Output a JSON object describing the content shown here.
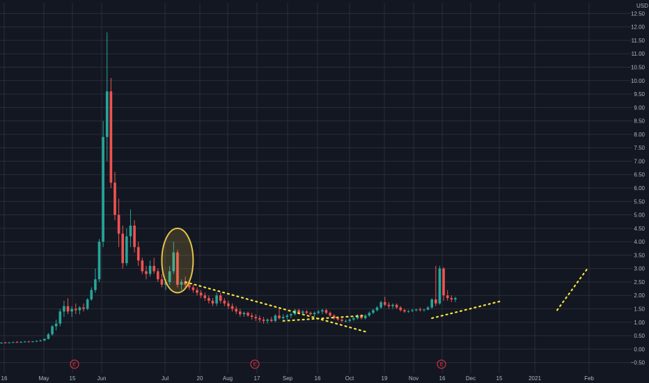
{
  "chart_data": {
    "type": "candlestick",
    "currency": "USD",
    "y_ticks": [
      12.5,
      12.0,
      11.5,
      11.0,
      10.5,
      10.0,
      9.5,
      9.0,
      8.5,
      8.0,
      7.5,
      7.0,
      6.5,
      6.0,
      5.5,
      5.0,
      4.5,
      4.0,
      3.5,
      3.0,
      2.5,
      2.0,
      1.5,
      1.0,
      0.5,
      0.0,
      -0.5
    ],
    "y_tick_labels": [
      "12.50",
      "12.00",
      "11.50",
      "11.00",
      "10.50",
      "10.00",
      "9.50",
      "9.00",
      "8.50",
      "8.00",
      "7.50",
      "7.00",
      "6.50",
      "6.00",
      "5.50",
      "5.00",
      "4.50",
      "4.00",
      "3.50",
      "3.00",
      "2.50",
      "2.00",
      "1.50",
      "1.00",
      "0.50",
      "0.00",
      "−0.50"
    ],
    "ylim": [
      -0.9,
      12.9
    ],
    "x_tick_labels": [
      "16",
      "May",
      "15",
      "Jun",
      "Jul",
      "20",
      "Aug",
      "17",
      "Sep",
      "16",
      "Oct",
      "19",
      "Nov",
      "16",
      "Dec",
      "15",
      "2021",
      "Feb"
    ],
    "earnings_badges": [
      "E",
      "E",
      "E"
    ],
    "grid": true,
    "candles": [
      {
        "o": 0.22,
        "h": 0.26,
        "l": 0.2,
        "c": 0.24
      },
      {
        "o": 0.24,
        "h": 0.27,
        "l": 0.22,
        "c": 0.23
      },
      {
        "o": 0.23,
        "h": 0.26,
        "l": 0.21,
        "c": 0.25
      },
      {
        "o": 0.25,
        "h": 0.28,
        "l": 0.23,
        "c": 0.26
      },
      {
        "o": 0.26,
        "h": 0.3,
        "l": 0.24,
        "c": 0.25
      },
      {
        "o": 0.25,
        "h": 0.29,
        "l": 0.23,
        "c": 0.27
      },
      {
        "o": 0.27,
        "h": 0.3,
        "l": 0.25,
        "c": 0.28
      },
      {
        "o": 0.28,
        "h": 0.31,
        "l": 0.26,
        "c": 0.27
      },
      {
        "o": 0.27,
        "h": 0.3,
        "l": 0.25,
        "c": 0.29
      },
      {
        "o": 0.29,
        "h": 0.33,
        "l": 0.27,
        "c": 0.3
      },
      {
        "o": 0.3,
        "h": 0.35,
        "l": 0.28,
        "c": 0.32
      },
      {
        "o": 0.32,
        "h": 0.4,
        "l": 0.3,
        "c": 0.38
      },
      {
        "o": 0.38,
        "h": 0.6,
        "l": 0.36,
        "c": 0.55
      },
      {
        "o": 0.55,
        "h": 0.9,
        "l": 0.5,
        "c": 0.85
      },
      {
        "o": 0.85,
        "h": 1.1,
        "l": 0.7,
        "c": 0.95
      },
      {
        "o": 0.95,
        "h": 1.5,
        "l": 0.85,
        "c": 1.4
      },
      {
        "o": 1.4,
        "h": 1.8,
        "l": 1.2,
        "c": 1.6
      },
      {
        "o": 1.6,
        "h": 1.9,
        "l": 1.3,
        "c": 1.4
      },
      {
        "o": 1.4,
        "h": 1.6,
        "l": 1.2,
        "c": 1.5
      },
      {
        "o": 1.5,
        "h": 1.7,
        "l": 1.3,
        "c": 1.45
      },
      {
        "o": 1.45,
        "h": 1.6,
        "l": 1.3,
        "c": 1.55
      },
      {
        "o": 1.55,
        "h": 1.7,
        "l": 1.4,
        "c": 1.5
      },
      {
        "o": 1.5,
        "h": 1.9,
        "l": 1.45,
        "c": 1.85
      },
      {
        "o": 1.85,
        "h": 2.3,
        "l": 1.8,
        "c": 2.2
      },
      {
        "o": 2.2,
        "h": 3.0,
        "l": 2.1,
        "c": 2.6
      },
      {
        "o": 2.6,
        "h": 4.1,
        "l": 2.5,
        "c": 4.0
      },
      {
        "o": 4.0,
        "h": 8.5,
        "l": 3.8,
        "c": 7.9
      },
      {
        "o": 7.9,
        "h": 11.8,
        "l": 7.0,
        "c": 9.6
      },
      {
        "o": 9.6,
        "h": 10.1,
        "l": 6.0,
        "c": 6.2
      },
      {
        "o": 6.2,
        "h": 6.6,
        "l": 4.8,
        "c": 5.0
      },
      {
        "o": 5.0,
        "h": 5.6,
        "l": 3.8,
        "c": 4.3
      },
      {
        "o": 4.3,
        "h": 4.6,
        "l": 3.0,
        "c": 3.2
      },
      {
        "o": 3.2,
        "h": 4.5,
        "l": 3.1,
        "c": 4.2
      },
      {
        "o": 4.2,
        "h": 5.2,
        "l": 3.8,
        "c": 4.6
      },
      {
        "o": 4.6,
        "h": 4.8,
        "l": 3.6,
        "c": 3.8
      },
      {
        "o": 3.8,
        "h": 4.0,
        "l": 3.1,
        "c": 3.3
      },
      {
        "o": 3.3,
        "h": 3.4,
        "l": 2.8,
        "c": 2.9
      },
      {
        "o": 2.9,
        "h": 3.1,
        "l": 2.6,
        "c": 2.8
      },
      {
        "o": 2.8,
        "h": 3.3,
        "l": 2.7,
        "c": 3.1
      },
      {
        "o": 3.1,
        "h": 3.4,
        "l": 2.8,
        "c": 2.9
      },
      {
        "o": 2.9,
        "h": 3.0,
        "l": 2.5,
        "c": 2.6
      },
      {
        "o": 2.6,
        "h": 2.8,
        "l": 2.3,
        "c": 2.4
      },
      {
        "o": 2.4,
        "h": 2.6,
        "l": 2.2,
        "c": 2.5
      },
      {
        "o": 2.5,
        "h": 3.1,
        "l": 2.4,
        "c": 2.9
      },
      {
        "o": 2.9,
        "h": 4.0,
        "l": 2.8,
        "c": 3.6
      },
      {
        "o": 3.6,
        "h": 3.7,
        "l": 2.3,
        "c": 2.4
      },
      {
        "o": 2.4,
        "h": 2.6,
        "l": 2.2,
        "c": 2.5
      },
      {
        "o": 2.5,
        "h": 2.7,
        "l": 2.3,
        "c": 2.4
      },
      {
        "o": 2.4,
        "h": 2.5,
        "l": 2.2,
        "c": 2.3
      },
      {
        "o": 2.3,
        "h": 2.4,
        "l": 2.1,
        "c": 2.2
      },
      {
        "o": 2.2,
        "h": 2.3,
        "l": 2.0,
        "c": 2.1
      },
      {
        "o": 2.1,
        "h": 2.2,
        "l": 1.9,
        "c": 2.0
      },
      {
        "o": 2.0,
        "h": 2.1,
        "l": 1.8,
        "c": 1.9
      },
      {
        "o": 1.9,
        "h": 2.0,
        "l": 1.7,
        "c": 1.8
      },
      {
        "o": 1.8,
        "h": 1.9,
        "l": 1.6,
        "c": 1.7
      },
      {
        "o": 1.7,
        "h": 2.1,
        "l": 1.6,
        "c": 2.0
      },
      {
        "o": 2.0,
        "h": 2.1,
        "l": 1.7,
        "c": 1.8
      },
      {
        "o": 1.8,
        "h": 1.9,
        "l": 1.6,
        "c": 1.7
      },
      {
        "o": 1.7,
        "h": 1.8,
        "l": 1.5,
        "c": 1.6
      },
      {
        "o": 1.6,
        "h": 1.7,
        "l": 1.4,
        "c": 1.5
      },
      {
        "o": 1.5,
        "h": 1.6,
        "l": 1.3,
        "c": 1.4
      },
      {
        "o": 1.4,
        "h": 1.5,
        "l": 1.2,
        "c": 1.3
      },
      {
        "o": 1.3,
        "h": 1.4,
        "l": 1.2,
        "c": 1.35
      },
      {
        "o": 1.35,
        "h": 1.4,
        "l": 1.2,
        "c": 1.25
      },
      {
        "o": 1.25,
        "h": 1.35,
        "l": 1.1,
        "c": 1.2
      },
      {
        "o": 1.2,
        "h": 1.3,
        "l": 1.05,
        "c": 1.15
      },
      {
        "o": 1.15,
        "h": 1.25,
        "l": 1.0,
        "c": 1.1
      },
      {
        "o": 1.1,
        "h": 1.2,
        "l": 0.95,
        "c": 1.05
      },
      {
        "o": 1.05,
        "h": 1.15,
        "l": 0.95,
        "c": 1.1
      },
      {
        "o": 1.1,
        "h": 1.2,
        "l": 1.0,
        "c": 1.05
      },
      {
        "o": 1.05,
        "h": 1.3,
        "l": 1.0,
        "c": 1.25
      },
      {
        "o": 1.25,
        "h": 1.5,
        "l": 1.1,
        "c": 1.15
      },
      {
        "o": 1.15,
        "h": 1.3,
        "l": 1.1,
        "c": 1.2
      },
      {
        "o": 1.2,
        "h": 1.3,
        "l": 1.1,
        "c": 1.25
      },
      {
        "o": 1.25,
        "h": 1.35,
        "l": 1.15,
        "c": 1.3
      },
      {
        "o": 1.3,
        "h": 1.5,
        "l": 1.25,
        "c": 1.45
      },
      {
        "o": 1.45,
        "h": 1.5,
        "l": 1.3,
        "c": 1.35
      },
      {
        "o": 1.35,
        "h": 1.45,
        "l": 1.3,
        "c": 1.4
      },
      {
        "o": 1.4,
        "h": 1.45,
        "l": 1.3,
        "c": 1.35
      },
      {
        "o": 1.35,
        "h": 1.4,
        "l": 1.25,
        "c": 1.3
      },
      {
        "o": 1.3,
        "h": 1.4,
        "l": 1.2,
        "c": 1.35
      },
      {
        "o": 1.35,
        "h": 1.45,
        "l": 1.3,
        "c": 1.4
      },
      {
        "o": 1.4,
        "h": 1.5,
        "l": 1.3,
        "c": 1.45
      },
      {
        "o": 1.45,
        "h": 1.5,
        "l": 1.3,
        "c": 1.35
      },
      {
        "o": 1.35,
        "h": 1.4,
        "l": 1.2,
        "c": 1.25
      },
      {
        "o": 1.25,
        "h": 1.3,
        "l": 1.1,
        "c": 1.15
      },
      {
        "o": 1.15,
        "h": 1.2,
        "l": 1.05,
        "c": 1.1
      },
      {
        "o": 1.1,
        "h": 1.15,
        "l": 1.0,
        "c": 1.05
      },
      {
        "o": 1.05,
        "h": 1.1,
        "l": 1.0,
        "c": 1.05
      },
      {
        "o": 1.05,
        "h": 1.15,
        "l": 1.0,
        "c": 1.1
      },
      {
        "o": 1.1,
        "h": 1.2,
        "l": 1.05,
        "c": 1.15
      },
      {
        "o": 1.15,
        "h": 1.3,
        "l": 1.1,
        "c": 1.25
      },
      {
        "o": 1.25,
        "h": 1.3,
        "l": 1.1,
        "c": 1.15
      },
      {
        "o": 1.15,
        "h": 1.3,
        "l": 1.1,
        "c": 1.25
      },
      {
        "o": 1.25,
        "h": 1.4,
        "l": 1.2,
        "c": 1.35
      },
      {
        "o": 1.35,
        "h": 1.5,
        "l": 1.3,
        "c": 1.45
      },
      {
        "o": 1.45,
        "h": 1.6,
        "l": 1.4,
        "c": 1.55
      },
      {
        "o": 1.55,
        "h": 1.8,
        "l": 1.5,
        "c": 1.75
      },
      {
        "o": 1.75,
        "h": 1.95,
        "l": 1.6,
        "c": 1.65
      },
      {
        "o": 1.65,
        "h": 1.75,
        "l": 1.5,
        "c": 1.6
      },
      {
        "o": 1.6,
        "h": 1.7,
        "l": 1.5,
        "c": 1.65
      },
      {
        "o": 1.65,
        "h": 1.7,
        "l": 1.5,
        "c": 1.55
      },
      {
        "o": 1.55,
        "h": 1.6,
        "l": 1.4,
        "c": 1.45
      },
      {
        "o": 1.45,
        "h": 1.5,
        "l": 1.35,
        "c": 1.4
      },
      {
        "o": 1.4,
        "h": 1.45,
        "l": 1.35,
        "c": 1.42
      },
      {
        "o": 1.42,
        "h": 1.5,
        "l": 1.38,
        "c": 1.45
      },
      {
        "o": 1.45,
        "h": 1.5,
        "l": 1.4,
        "c": 1.48
      },
      {
        "o": 1.48,
        "h": 1.55,
        "l": 1.4,
        "c": 1.45
      },
      {
        "o": 1.45,
        "h": 1.5,
        "l": 1.4,
        "c": 1.47
      },
      {
        "o": 1.47,
        "h": 1.6,
        "l": 1.45,
        "c": 1.55
      },
      {
        "o": 1.55,
        "h": 1.9,
        "l": 1.5,
        "c": 1.85
      },
      {
        "o": 1.85,
        "h": 3.1,
        "l": 1.6,
        "c": 1.7
      },
      {
        "o": 1.7,
        "h": 3.1,
        "l": 1.65,
        "c": 3.0
      },
      {
        "o": 3.0,
        "h": 3.05,
        "l": 1.8,
        "c": 2.0
      },
      {
        "o": 2.0,
        "h": 2.2,
        "l": 1.8,
        "c": 1.9
      },
      {
        "o": 1.9,
        "h": 2.0,
        "l": 1.75,
        "c": 1.85
      },
      {
        "o": 1.85,
        "h": 1.95,
        "l": 1.75,
        "c": 1.9
      }
    ],
    "annotations": {
      "ellipse": {
        "x_index": [
          41,
          49
        ],
        "y": [
          2.1,
          4.5
        ],
        "color": "#e6c34a"
      },
      "trendlines": [
        {
          "from_index": 47,
          "from_y": 2.5,
          "to_index": 93,
          "to_y": 0.65,
          "color": "#f5e63c"
        },
        {
          "from_index": 72,
          "from_y": 1.05,
          "to_index": 93,
          "to_y": 1.25,
          "color": "#f5e63c"
        },
        {
          "from_index": 110,
          "from_y": 1.15,
          "to_index": 128,
          "to_y": 1.8,
          "color": "#f5e63c"
        },
        {
          "from_index": 142,
          "from_y": 1.45,
          "to_index": 150,
          "to_y": 3.05,
          "color": "#f5e63c"
        }
      ]
    },
    "colors": {
      "up": "#26a69a",
      "down": "#ef5350",
      "grid": "#2a2e39",
      "background": "#131722",
      "text": "#b2b5be",
      "earnings": "#f23645"
    }
  }
}
